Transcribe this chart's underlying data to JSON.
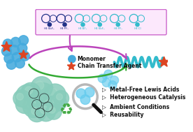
{
  "bg_color": "#ffffff",
  "box_bg": "#fce8fc",
  "box_border": "#cc66cc",
  "arrow_purple_color": "#bb44bb",
  "arrow_green_color": "#33aa33",
  "monomer_color": "#44aadd",
  "monomer_color2": "#66ccee",
  "star_color": "#dd4422",
  "polymer_wave_color": "#33bbcc",
  "blob_color": "#88ccbb",
  "blob_color2": "#aaddcc",
  "bullet_color": "#111111",
  "bullet_items": [
    "Metal-Free Lewis Acids",
    "Heterogeneous Catalysis",
    "Ambient Conditions",
    "Reusability"
  ],
  "label_monomer": "Monomer",
  "label_cta": "Chain Transfer Agent",
  "text_color": "#111111",
  "recycle_color": "#44aa44",
  "magnifier_color": "#111111",
  "ring_color_dark": "#223388",
  "ring_color_cyan": "#33bbcc"
}
